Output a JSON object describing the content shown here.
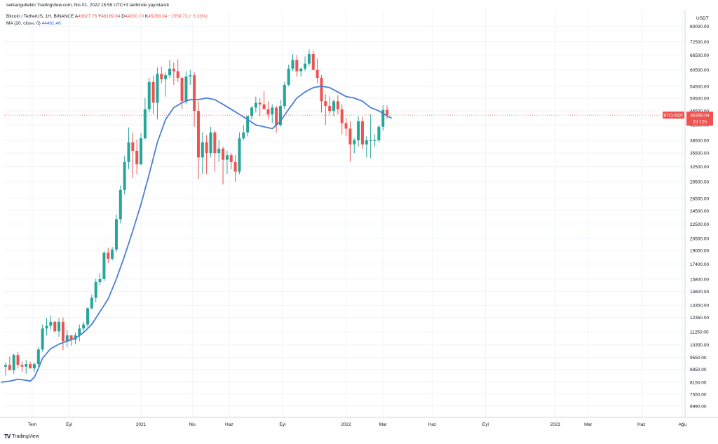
{
  "header": {
    "published": "serkangultekin TradingView.com, Nis 01, 2022 15:59 UTC+3 tarihinde yayınlandı"
  },
  "legend": {
    "symbol": "Bitcoin / TetherUS, 1H, BINANCE",
    "open_label": "A",
    "open": "46827.76",
    "high_label": "Y",
    "high": "48189.84",
    "low_label": "D",
    "low": "44200.00",
    "close_label": "K",
    "close": "45268.04",
    "change": "−1559.72 (−3.33%)",
    "ma_label": "MA (20, close, 0)",
    "ma_value": "44461.46"
  },
  "footer": {
    "brand": "TradingView"
  },
  "colors": {
    "up": "#26a69a",
    "down": "#ef5350",
    "ma": "#4a7fd4",
    "grid": "#f0f3fa",
    "axis_text": "#131722",
    "price_badge": "#ef5350"
  },
  "chart_data": {
    "type": "candlestick",
    "symbol": "BTCUSDT",
    "y_scale": "log",
    "ylim": [
      6500,
      89000
    ],
    "y_axis_unit": "USDT",
    "y_ticks": [
      80000,
      72500,
      66500,
      60500,
      54500,
      50500,
      46500,
      42500,
      38500,
      35500,
      32500,
      29500,
      26500,
      24500,
      22500,
      20500,
      19000,
      17400,
      15800,
      14600,
      13350,
      12350,
      11250,
      10350,
      9550,
      8850,
      8150,
      7550,
      6990
    ],
    "y_tick_labels": [
      "80000.00",
      "72500.00",
      "66500.00",
      "60500.00",
      "54500.00",
      "50500.00",
      "46500.00",
      "42500.00",
      "38500.00",
      "35500.00",
      "32500.00",
      "29500.00",
      "26500.00",
      "24500.00",
      "22500.00",
      "20500.00",
      "19000.00",
      "17400.00",
      "15800.00",
      "14600.00",
      "13350.00",
      "12350.00",
      "11250.00",
      "10350.00",
      "9550.00",
      "8850.00",
      "8150.00",
      "7550.00",
      "6990.00"
    ],
    "x_tick_labels": [
      "Tem",
      "Eyl",
      "2021",
      "Nis",
      "Haz",
      "Eyl",
      "2022",
      "Mar",
      "Haz",
      "Eyl",
      "2023",
      "Mar",
      "Haz",
      "Ağu"
    ],
    "x_tick_bar_index": [
      6.5,
      15.5,
      33,
      45.5,
      54.5,
      67.5,
      83,
      92,
      104,
      117,
      134,
      142,
      155,
      165
    ],
    "candles_ohlc": [
      [
        9000,
        9250,
        8500,
        9100
      ],
      [
        9100,
        9600,
        8900,
        8800
      ],
      [
        8800,
        9800,
        8600,
        9700
      ],
      [
        9700,
        9900,
        8900,
        9100
      ],
      [
        9100,
        9300,
        8700,
        9000
      ],
      [
        9000,
        9400,
        8600,
        9150
      ],
      [
        9150,
        9300,
        9000,
        8900
      ],
      [
        8900,
        9250,
        8700,
        9150
      ],
      [
        9150,
        10200,
        9000,
        10050
      ],
      [
        10050,
        11800,
        9900,
        11500
      ],
      [
        11500,
        12300,
        11000,
        11700
      ],
      [
        11700,
        12500,
        11400,
        12000
      ],
      [
        12000,
        12100,
        11200,
        11300
      ],
      [
        11300,
        12300,
        10900,
        12000
      ],
      [
        12000,
        12350,
        10000,
        10600
      ],
      [
        10600,
        11400,
        10200,
        11000
      ],
      [
        11000,
        11000,
        10300,
        10700
      ],
      [
        10700,
        11200,
        10400,
        11000
      ],
      [
        11000,
        11800,
        10600,
        11500
      ],
      [
        11500,
        12000,
        11300,
        11800
      ],
      [
        11800,
        13200,
        11600,
        13100
      ],
      [
        13100,
        14300,
        13000,
        14000
      ],
      [
        14000,
        15800,
        13600,
        15500
      ],
      [
        15500,
        16400,
        15200,
        15800
      ],
      [
        15800,
        18900,
        15600,
        18700
      ],
      [
        18700,
        19300,
        17500,
        18000
      ],
      [
        18000,
        19400,
        17800,
        19100
      ],
      [
        19100,
        23900,
        18800,
        23200
      ],
      [
        23200,
        28800,
        22600,
        28000
      ],
      [
        28000,
        34800,
        27200,
        33500
      ],
      [
        33500,
        41800,
        32000,
        38000
      ],
      [
        38000,
        40500,
        30200,
        36000
      ],
      [
        36000,
        38700,
        31000,
        33000
      ],
      [
        33000,
        40300,
        32800,
        39000
      ],
      [
        39000,
        50500,
        38700,
        47000
      ],
      [
        47000,
        57500,
        46000,
        56000
      ],
      [
        56000,
        58300,
        45500,
        49000
      ],
      [
        49000,
        61500,
        44000,
        59000
      ],
      [
        59000,
        61800,
        55500,
        57000
      ],
      [
        57000,
        59500,
        51000,
        58500
      ],
      [
        58500,
        64500,
        57500,
        61000
      ],
      [
        61000,
        63500,
        55000,
        60000
      ],
      [
        60000,
        64800,
        56000,
        57500
      ],
      [
        57500,
        58000,
        47000,
        49500
      ],
      [
        49500,
        60000,
        48500,
        58000
      ],
      [
        58000,
        60500,
        55000,
        58500
      ],
      [
        58500,
        59600,
        42000,
        46500
      ],
      [
        46500,
        49500,
        30000,
        34500
      ],
      [
        34500,
        40500,
        31000,
        38000
      ],
      [
        38000,
        39800,
        31000,
        35500
      ],
      [
        35500,
        42000,
        34500,
        40500
      ],
      [
        40500,
        41000,
        31500,
        35500
      ],
      [
        35500,
        38500,
        33500,
        36500
      ],
      [
        36500,
        37000,
        29000,
        34000
      ],
      [
        34000,
        36000,
        31000,
        35000
      ],
      [
        35000,
        35500,
        32000,
        33500
      ],
      [
        33500,
        35000,
        29500,
        31500
      ],
      [
        31500,
        40500,
        31000,
        39000
      ],
      [
        39000,
        42500,
        38500,
        40500
      ],
      [
        40500,
        45000,
        39500,
        45000
      ],
      [
        45000,
        48000,
        44000,
        47500
      ],
      [
        47500,
        51000,
        46000,
        49000
      ],
      [
        49000,
        50500,
        45000,
        48500
      ],
      [
        48500,
        52800,
        47000,
        47000
      ],
      [
        47000,
        49500,
        44000,
        45500
      ],
      [
        45500,
        48500,
        43000,
        47500
      ],
      [
        47500,
        48000,
        40500,
        42500
      ],
      [
        42500,
        50000,
        42000,
        48000
      ],
      [
        48000,
        56000,
        47000,
        55000
      ],
      [
        55000,
        62500,
        54500,
        61000
      ],
      [
        61000,
        67000,
        60000,
        64500
      ],
      [
        64500,
        66500,
        58000,
        60000
      ],
      [
        60000,
        61500,
        58000,
        61000
      ],
      [
        61000,
        66000,
        60000,
        63000
      ],
      [
        63000,
        69000,
        62000,
        67000
      ],
      [
        67000,
        68500,
        60500,
        60500
      ],
      [
        60500,
        65000,
        55500,
        57500
      ],
      [
        57500,
        58500,
        46000,
        49500
      ],
      [
        49500,
        51800,
        42500,
        48000
      ],
      [
        48000,
        51000,
        45500,
        46500
      ],
      [
        46500,
        50000,
        45000,
        49500
      ],
      [
        49500,
        51500,
        45500,
        47000
      ],
      [
        47000,
        48500,
        40000,
        43000
      ],
      [
        43000,
        44500,
        39500,
        41500
      ],
      [
        41500,
        43500,
        33500,
        37500
      ],
      [
        37500,
        39000,
        35500,
        38500
      ],
      [
        38500,
        45000,
        37000,
        43500
      ],
      [
        43500,
        44800,
        36500,
        37500
      ],
      [
        37500,
        39500,
        34500,
        38500
      ],
      [
        38500,
        45500,
        34300,
        38500
      ],
      [
        38500,
        40000,
        37000,
        38500
      ],
      [
        38500,
        42500,
        38000,
        42000
      ],
      [
        42000,
        48200,
        41000,
        46800
      ],
      [
        46800,
        48200,
        44200,
        45268
      ]
    ],
    "ma_series": [
      [
        -1,
        8150
      ],
      [
        1,
        8200
      ],
      [
        3,
        8300
      ],
      [
        5,
        8250
      ],
      [
        6,
        8200
      ],
      [
        7,
        8400
      ],
      [
        8,
        8900
      ],
      [
        9,
        9500
      ],
      [
        11,
        10100
      ],
      [
        13,
        10400
      ],
      [
        15,
        10600
      ],
      [
        17,
        10800
      ],
      [
        19,
        11200
      ],
      [
        21,
        11800
      ],
      [
        23,
        12800
      ],
      [
        25,
        13900
      ],
      [
        27,
        15800
      ],
      [
        29,
        18300
      ],
      [
        31,
        21500
      ],
      [
        33,
        25500
      ],
      [
        35,
        31000
      ],
      [
        37,
        38000
      ],
      [
        39,
        44000
      ],
      [
        41,
        47500
      ],
      [
        43,
        49000
      ],
      [
        45,
        50000
      ],
      [
        47,
        50000
      ],
      [
        49,
        50500
      ],
      [
        51,
        50000
      ],
      [
        53,
        48500
      ],
      [
        55,
        47000
      ],
      [
        57,
        45500
      ],
      [
        59,
        44000
      ],
      [
        61,
        42500
      ],
      [
        63,
        42000
      ],
      [
        65,
        41500
      ],
      [
        67,
        43500
      ],
      [
        69,
        47000
      ],
      [
        71,
        50500
      ],
      [
        73,
        52500
      ],
      [
        75,
        54000
      ],
      [
        77,
        54500
      ],
      [
        79,
        54000
      ],
      [
        81,
        52500
      ],
      [
        83,
        51000
      ],
      [
        85,
        50500
      ],
      [
        87,
        49500
      ],
      [
        89,
        47500
      ],
      [
        91,
        46500
      ],
      [
        93,
        45000
      ],
      [
        94,
        44461
      ]
    ],
    "last_price_badge": {
      "symbol": "BTCUSDT",
      "price": "45268.04",
      "countdown": "2d 12h"
    }
  }
}
